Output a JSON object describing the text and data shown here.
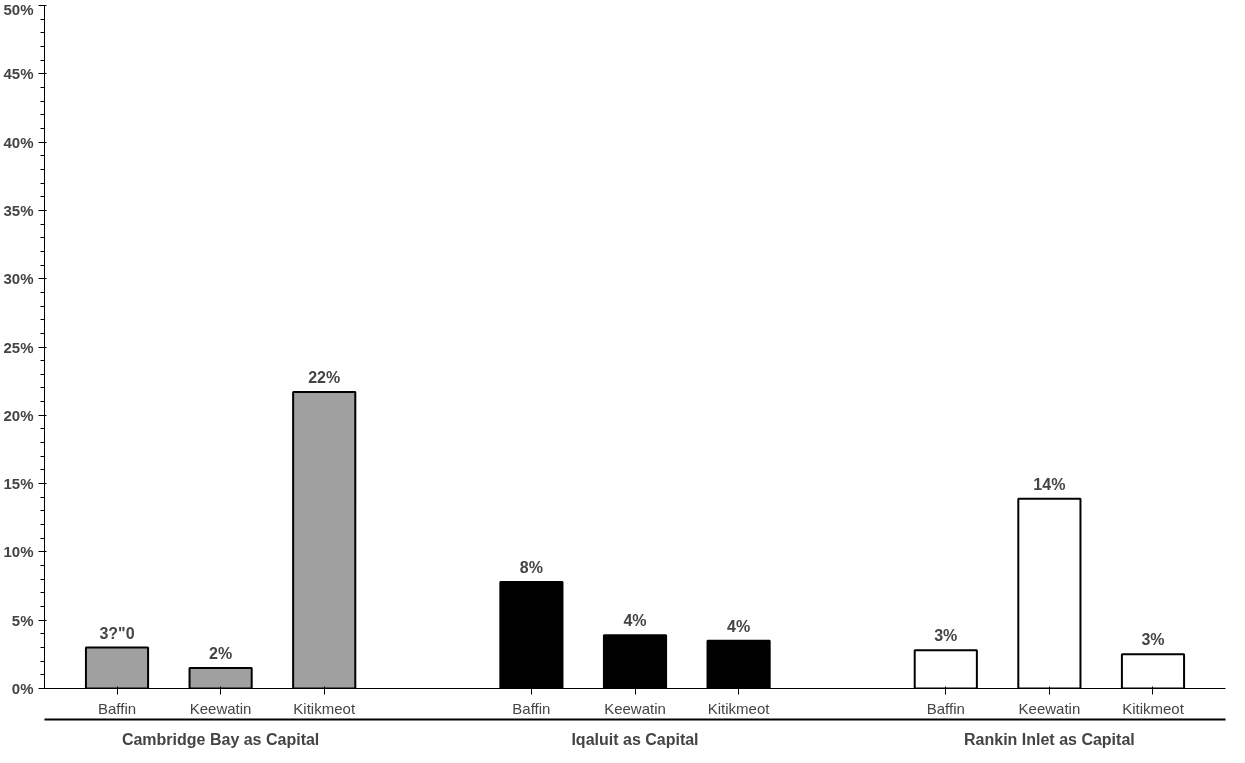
{
  "chart_data": {
    "type": "bar",
    "categories": [
      "Baffin",
      "Keewatin",
      "Kitikmeot",
      "Baffin",
      "Keewatin",
      "Kitikmeot",
      "Baffin",
      "Keewatin",
      "Kitikmeot"
    ],
    "series": [
      {
        "name": "Cambridge Bay as Capital",
        "color": "#a0a0a0",
        "values": [
          3,
          1.5,
          21.7,
          null,
          null,
          null,
          null,
          null,
          null
        ],
        "value_labels": [
          "3?\"0",
          "2%",
          "22%",
          null,
          null,
          null,
          null,
          null,
          null
        ]
      },
      {
        "name": "Iqaluit as Capital",
        "color": "#000000",
        "values": [
          null,
          null,
          null,
          7.8,
          3.9,
          3.5,
          null,
          null,
          null
        ],
        "value_labels": [
          null,
          null,
          null,
          "8%",
          "4%",
          "4%",
          null,
          null,
          null
        ]
      },
      {
        "name": "Rankin Inlet as Capital",
        "color": "#ffffff",
        "values": [
          null,
          null,
          null,
          null,
          null,
          null,
          2.8,
          13.9,
          2.5
        ],
        "value_labels": [
          null,
          null,
          null,
          null,
          null,
          null,
          "3%",
          "14%",
          "3%"
        ]
      }
    ],
    "ylim": [
      0,
      50
    ],
    "yticks": [
      {
        "value": 0,
        "label": "0%"
      },
      {
        "value": 5,
        "label": "5%"
      },
      {
        "value": 10,
        "label": "10%"
      },
      {
        "value": 15,
        "label": "15%"
      },
      {
        "value": 20,
        "label": "20%"
      },
      {
        "value": 25,
        "label": "25%"
      },
      {
        "value": 30,
        "label": "30%"
      },
      {
        "value": 35,
        "label": "35%"
      },
      {
        "value": 40,
        "label": "40%"
      },
      {
        "value": 45,
        "label": "45%"
      },
      {
        "value": 50,
        "label": "50%"
      }
    ],
    "grid": false
  }
}
